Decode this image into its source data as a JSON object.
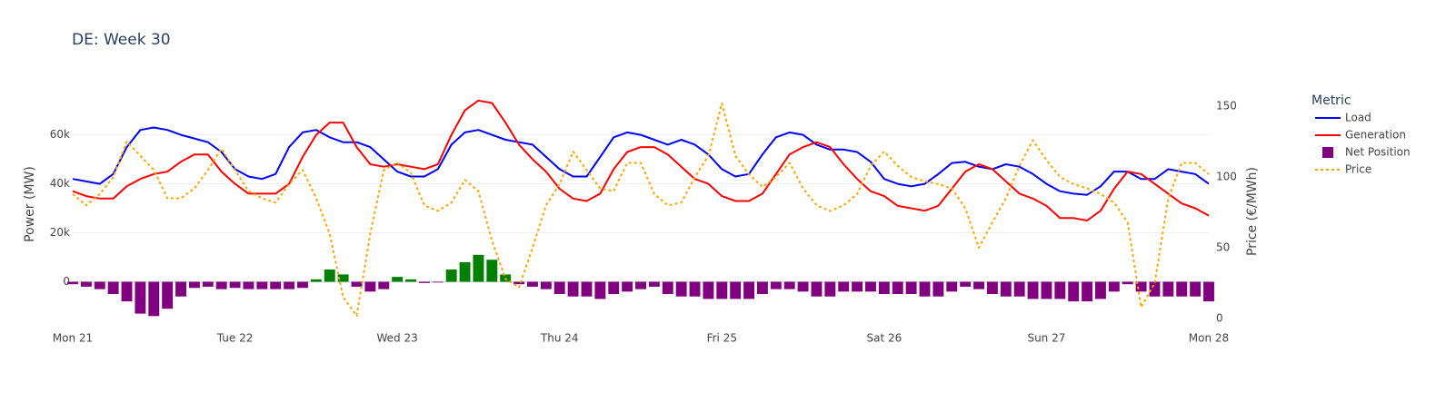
{
  "chart_data": {
    "type": "line",
    "title": "DE: Week 30",
    "y_label": "Power (MW)",
    "y2_label": "Price (€/MWh)",
    "legend_title": "Metric",
    "grid": true,
    "x": [
      0,
      2,
      4,
      6,
      8,
      10,
      12,
      14,
      16,
      18,
      20,
      22,
      24,
      26,
      28,
      30,
      32,
      34,
      36,
      38,
      40,
      42,
      44,
      46,
      48,
      50,
      52,
      54,
      56,
      58,
      60,
      62,
      64,
      66,
      68,
      70,
      72,
      74,
      76,
      78,
      80,
      82,
      84,
      86,
      88,
      90,
      92,
      94,
      96,
      98,
      100,
      102,
      104,
      106,
      108,
      110,
      112,
      114,
      116,
      118,
      120,
      122,
      124,
      126,
      128,
      130,
      132,
      134,
      136,
      138,
      140,
      142,
      144,
      146,
      148,
      150,
      152,
      154,
      156,
      158,
      160,
      162,
      164,
      166,
      168
    ],
    "xlim": [
      0,
      168
    ],
    "xticks": [
      {
        "value": 0,
        "label": "Mon 21"
      },
      {
        "value": 24,
        "label": "Tue 22"
      },
      {
        "value": 48,
        "label": "Wed 23"
      },
      {
        "value": 72,
        "label": "Thu 24"
      },
      {
        "value": 96,
        "label": "Fri 25"
      },
      {
        "value": 120,
        "label": "Sat 26"
      },
      {
        "value": 144,
        "label": "Sun 27"
      },
      {
        "value": 168,
        "label": "Mon 28"
      }
    ],
    "ylim": [
      -15000,
      78000
    ],
    "yticks": [
      0,
      {
        "value": 20000,
        "label": "20k"
      },
      {
        "value": 40000,
        "label": "40k"
      },
      {
        "value": 60000,
        "label": "60k"
      }
    ],
    "y2lim": [
      0,
      161
    ],
    "y2ticks": [
      0,
      50,
      100,
      150
    ],
    "series": [
      {
        "name": "Load",
        "kind": "line",
        "color": "#0000ff",
        "values": [
          42000,
          41000,
          40000,
          44000,
          55000,
          62000,
          63000,
          62000,
          60000,
          58500,
          57000,
          53000,
          46000,
          43000,
          42000,
          44000,
          55000,
          61000,
          62000,
          59000,
          57000,
          57000,
          55000,
          50000,
          45000,
          43000,
          43000,
          46000,
          56000,
          61000,
          62000,
          60000,
          58000,
          57000,
          56000,
          51000,
          46000,
          43000,
          43000,
          51000,
          59000,
          61000,
          60000,
          58000,
          56000,
          58000,
          56000,
          52000,
          46000,
          43000,
          44000,
          52000,
          59000,
          61000,
          60000,
          56000,
          54000,
          54000,
          53000,
          49000,
          42000,
          40000,
          39000,
          40000,
          44000,
          48500,
          49000,
          47000,
          46000,
          48000,
          47000,
          44000,
          40000,
          37000,
          36000,
          35500,
          39000,
          45000,
          45000,
          42000,
          42000,
          46000,
          45000,
          44000,
          40000
        ]
      },
      {
        "name": "Generation",
        "kind": "line",
        "color": "#ff0000",
        "values": [
          37000,
          35000,
          34000,
          34000,
          39000,
          42000,
          44000,
          45000,
          49000,
          52000,
          52000,
          45000,
          40000,
          36000,
          36000,
          36000,
          40000,
          51000,
          60000,
          65000,
          65000,
          55000,
          48000,
          47000,
          48000,
          47000,
          46000,
          48000,
          60000,
          70000,
          74000,
          73000,
          65000,
          56000,
          50000,
          45000,
          38000,
          34000,
          33000,
          36000,
          46000,
          53000,
          55000,
          55000,
          52000,
          47000,
          42000,
          40000,
          35000,
          33000,
          33000,
          36000,
          44000,
          52000,
          55000,
          57000,
          55000,
          48000,
          42000,
          37000,
          35000,
          31000,
          30000,
          29000,
          31000,
          38000,
          45000,
          48000,
          46000,
          41000,
          36000,
          34000,
          31000,
          26000,
          26000,
          25000,
          29000,
          38000,
          45000,
          44000,
          40000,
          36000,
          32000,
          30000,
          27000
        ]
      },
      {
        "name": "Net Position",
        "kind": "bar",
        "color": "#800080",
        "positive_color": "#008000",
        "values": [
          -1000,
          -2000,
          -3000,
          -5000,
          -8000,
          -13000,
          -14000,
          -11000,
          -6000,
          -2500,
          -2000,
          -3000,
          -2500,
          -3000,
          -3000,
          -3000,
          -3000,
          -2500,
          1000,
          5000,
          3000,
          -2000,
          -4000,
          -3000,
          2000,
          1000,
          -500,
          -300,
          5000,
          8000,
          11000,
          9000,
          3000,
          -1000,
          -2000,
          -3000,
          -5000,
          -6000,
          -6000,
          -7000,
          -5000,
          -4000,
          -3000,
          -2000,
          -5000,
          -6000,
          -6000,
          -7000,
          -7000,
          -7000,
          -7000,
          -5000,
          -3000,
          -3000,
          -4000,
          -6000,
          -6000,
          -4000,
          -4000,
          -4000,
          -5000,
          -5000,
          -5000,
          -6000,
          -6000,
          -4000,
          -2000,
          -3000,
          -5000,
          -6000,
          -6000,
          -7000,
          -7000,
          -7000,
          -8000,
          -8000,
          -7000,
          -4000,
          -1000,
          -4000,
          -6000,
          -6000,
          -6000,
          -6000,
          -8000
        ]
      },
      {
        "name": "Price",
        "kind": "line",
        "dash": "dot",
        "axis": "y2",
        "color": "#ffa500",
        "values": [
          88,
          80,
          88,
          100,
          125,
          115,
          105,
          85,
          85,
          92,
          105,
          120,
          105,
          90,
          85,
          82,
          95,
          105,
          85,
          60,
          15,
          2,
          60,
          105,
          110,
          103,
          80,
          76,
          82,
          98,
          90,
          55,
          28,
          22,
          50,
          80,
          95,
          118,
          105,
          92,
          90,
          110,
          110,
          88,
          80,
          82,
          100,
          115,
          152,
          115,
          102,
          93,
          100,
          110,
          92,
          80,
          76,
          80,
          88,
          108,
          118,
          108,
          100,
          97,
          95,
          92,
          78,
          50,
          68,
          85,
          108,
          126,
          112,
          100,
          95,
          92,
          88,
          82,
          68,
          8,
          25,
          85,
          110,
          110,
          102
        ]
      }
    ]
  }
}
